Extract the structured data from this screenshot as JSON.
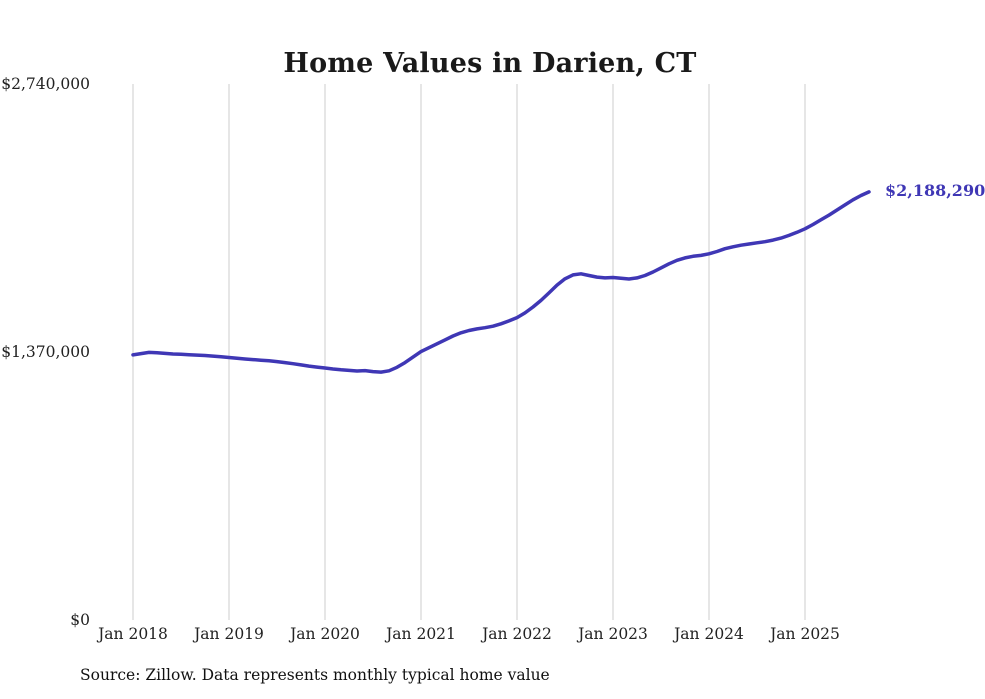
{
  "title": "Home Values in Darien, CT",
  "source_note": "Source: Zillow. Data represents monthly typical home value",
  "end_label": {
    "text": "$2,188,290",
    "value": 2188290
  },
  "colors": {
    "line": "#3f37b5",
    "gridline": "#cccccc",
    "title_text": "#1a1a1a",
    "axis_text": "#222222"
  },
  "y_axis": {
    "tick_labels": [
      "$2,740,000",
      "$1,370,000",
      "$0"
    ],
    "tick_values": [
      2740000,
      1370000,
      0
    ]
  },
  "x_axis": {
    "tick_labels": [
      "Jan 2018",
      "Jan 2019",
      "Jan 2020",
      "Jan 2021",
      "Jan 2022",
      "Jan 2023",
      "Jan 2024",
      "Jan 2025"
    ]
  },
  "chart_data": {
    "type": "line",
    "title": "Home Values in Darien, CT",
    "cadence": "monthly",
    "x_start_month": "2018-01",
    "x_end_month": "2025-09",
    "x_tick_labels": [
      "Jan 2018",
      "Jan 2019",
      "Jan 2020",
      "Jan 2021",
      "Jan 2022",
      "Jan 2023",
      "Jan 2024",
      "Jan 2025"
    ],
    "ylim": [
      0,
      2740000
    ],
    "y_tick_values": [
      0,
      1370000,
      2740000
    ],
    "y_tick_labels": [
      "$0",
      "$1,370,000",
      "$2,740,000"
    ],
    "grid": "vertical",
    "legend": "none",
    "end_annotation": "$2,188,290",
    "ylabel": "",
    "xlabel": "",
    "series": [
      {
        "name": "Typical home value",
        "values": [
          1355000,
          1362000,
          1368000,
          1366000,
          1363000,
          1360000,
          1358000,
          1356000,
          1354000,
          1352000,
          1349000,
          1346000,
          1342000,
          1338000,
          1334000,
          1331000,
          1328000,
          1325000,
          1321000,
          1316000,
          1310000,
          1304000,
          1298000,
          1293000,
          1288000,
          1283000,
          1279000,
          1276000,
          1273000,
          1275000,
          1270000,
          1267000,
          1274000,
          1292000,
          1316000,
          1344000,
          1372000,
          1392000,
          1412000,
          1432000,
          1452000,
          1468000,
          1480000,
          1488000,
          1494000,
          1502000,
          1514000,
          1529000,
          1546000,
          1570000,
          1600000,
          1634000,
          1672000,
          1712000,
          1744000,
          1764000,
          1770000,
          1761000,
          1753000,
          1749000,
          1751000,
          1747000,
          1743000,
          1749000,
          1761000,
          1779000,
          1800000,
          1821000,
          1839000,
          1851000,
          1859000,
          1864000,
          1872000,
          1884000,
          1898000,
          1908000,
          1916000,
          1922000,
          1928000,
          1934000,
          1942000,
          1952000,
          1966000,
          1982000,
          2000000,
          2022000,
          2046000,
          2070000,
          2096000,
          2122000,
          2148000,
          2170000,
          2188290
        ]
      }
    ]
  }
}
